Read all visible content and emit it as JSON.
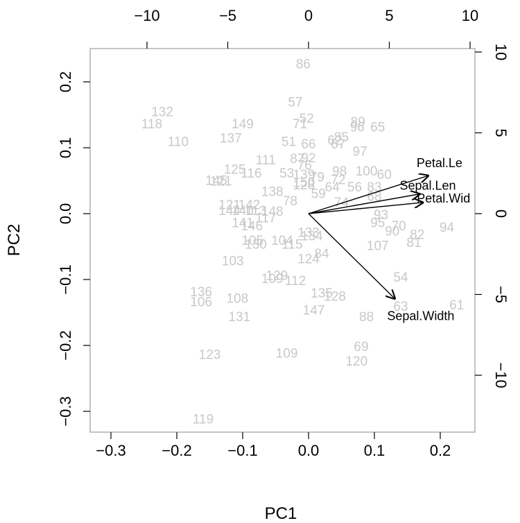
{
  "chart_data": {
    "type": "scatter",
    "title": "",
    "xlabel": "PC1",
    "ylabel": "PC2",
    "xlim": [
      -0.3,
      0.2
    ],
    "ylim": [
      -0.3,
      0.2
    ],
    "xticks": [
      "-0.3",
      "-0.2",
      "-0.1",
      "0.0",
      "0.1",
      "0.2"
    ],
    "yticks": [
      "-0.3",
      "-0.2",
      "-0.1",
      "0.0",
      "0.1",
      "0.2"
    ],
    "top_xticks": [
      "-10",
      "-5",
      "0",
      "5",
      "10"
    ],
    "right_yticks": [
      "-10",
      "-5",
      "0",
      "5",
      "10"
    ],
    "colors": {
      "points": "#c8c8c8",
      "arrows": "#000000",
      "frame": "#b0b0b0"
    },
    "points": [
      {
        "label": "86",
        "x": -0.008,
        "y": 0.226
      },
      {
        "label": "57",
        "x": -0.02,
        "y": 0.168
      },
      {
        "label": "52",
        "x": -0.003,
        "y": 0.143
      },
      {
        "label": "71",
        "x": -0.013,
        "y": 0.135
      },
      {
        "label": "132",
        "x": -0.222,
        "y": 0.153
      },
      {
        "label": "118",
        "x": -0.238,
        "y": 0.135
      },
      {
        "label": "149",
        "x": -0.1,
        "y": 0.135
      },
      {
        "label": "110",
        "x": -0.198,
        "y": 0.108
      },
      {
        "label": "137",
        "x": -0.118,
        "y": 0.113
      },
      {
        "label": "51",
        "x": -0.03,
        "y": 0.108
      },
      {
        "label": "66",
        "x": 0.0,
        "y": 0.104
      },
      {
        "label": "89",
        "x": 0.075,
        "y": 0.138
      },
      {
        "label": "96",
        "x": 0.074,
        "y": 0.13
      },
      {
        "label": "65",
        "x": 0.105,
        "y": 0.13
      },
      {
        "label": "85",
        "x": 0.05,
        "y": 0.115
      },
      {
        "label": "62",
        "x": 0.04,
        "y": 0.11
      },
      {
        "label": "67",
        "x": 0.045,
        "y": 0.104
      },
      {
        "label": "97",
        "x": 0.078,
        "y": 0.093
      },
      {
        "label": "111",
        "x": -0.065,
        "y": 0.08
      },
      {
        "label": "87",
        "x": -0.017,
        "y": 0.082
      },
      {
        "label": "92",
        "x": 0.0,
        "y": 0.083
      },
      {
        "label": "76",
        "x": -0.006,
        "y": 0.072
      },
      {
        "label": "125",
        "x": -0.112,
        "y": 0.066
      },
      {
        "label": "116",
        "x": -0.087,
        "y": 0.06
      },
      {
        "label": "145",
        "x": -0.14,
        "y": 0.049
      },
      {
        "label": "121",
        "x": -0.133,
        "y": 0.048
      },
      {
        "label": "53",
        "x": -0.033,
        "y": 0.06
      },
      {
        "label": "139",
        "x": -0.007,
        "y": 0.058
      },
      {
        "label": "79",
        "x": 0.013,
        "y": 0.054
      },
      {
        "label": "98",
        "x": 0.047,
        "y": 0.063
      },
      {
        "label": "100",
        "x": 0.088,
        "y": 0.063
      },
      {
        "label": "72",
        "x": 0.045,
        "y": 0.05
      },
      {
        "label": "60",
        "x": 0.115,
        "y": 0.058
      },
      {
        "label": "150",
        "x": -0.007,
        "y": 0.046
      },
      {
        "label": "128",
        "x": -0.007,
        "y": 0.042
      },
      {
        "label": "64",
        "x": 0.036,
        "y": 0.039
      },
      {
        "label": "56",
        "x": 0.07,
        "y": 0.039
      },
      {
        "label": "83",
        "x": 0.1,
        "y": 0.039
      },
      {
        "label": "68",
        "x": 0.1,
        "y": 0.025
      },
      {
        "label": "138",
        "x": -0.055,
        "y": 0.032
      },
      {
        "label": "59",
        "x": 0.015,
        "y": 0.029
      },
      {
        "label": "78",
        "x": -0.028,
        "y": 0.018
      },
      {
        "label": "74",
        "x": 0.05,
        "y": 0.016
      },
      {
        "label": "121",
        "x": -0.12,
        "y": 0.012
      },
      {
        "label": "142",
        "x": -0.09,
        "y": 0.012
      },
      {
        "label": "144",
        "x": -0.12,
        "y": 0.003
      },
      {
        "label": "140",
        "x": -0.1,
        "y": 0.003
      },
      {
        "label": "113",
        "x": -0.08,
        "y": 0.003
      },
      {
        "label": "148",
        "x": -0.055,
        "y": 0.002
      },
      {
        "label": "141",
        "x": -0.1,
        "y": -0.015
      },
      {
        "label": "117",
        "x": -0.065,
        "y": -0.008
      },
      {
        "label": "146",
        "x": -0.086,
        "y": -0.02
      },
      {
        "label": "93",
        "x": 0.11,
        "y": -0.003
      },
      {
        "label": "95",
        "x": 0.105,
        "y": -0.015
      },
      {
        "label": "70",
        "x": 0.137,
        "y": -0.02
      },
      {
        "label": "94",
        "x": 0.21,
        "y": -0.022
      },
      {
        "label": "82",
        "x": 0.165,
        "y": -0.033
      },
      {
        "label": "90",
        "x": 0.127,
        "y": -0.028
      },
      {
        "label": "105",
        "x": -0.085,
        "y": -0.042
      },
      {
        "label": "130",
        "x": -0.08,
        "y": -0.048
      },
      {
        "label": "104",
        "x": -0.04,
        "y": -0.042
      },
      {
        "label": "115",
        "x": -0.025,
        "y": -0.048
      },
      {
        "label": "133",
        "x": 0.0,
        "y": -0.03
      },
      {
        "label": "134",
        "x": 0.005,
        "y": -0.035
      },
      {
        "label": "107",
        "x": 0.105,
        "y": -0.05
      },
      {
        "label": "81",
        "x": 0.16,
        "y": -0.045
      },
      {
        "label": "124",
        "x": 0.0,
        "y": -0.07
      },
      {
        "label": "84",
        "x": 0.02,
        "y": -0.062
      },
      {
        "label": "103",
        "x": -0.115,
        "y": -0.073
      },
      {
        "label": "109",
        "x": -0.055,
        "y": -0.1
      },
      {
        "label": "129",
        "x": -0.048,
        "y": -0.095
      },
      {
        "label": "112",
        "x": -0.02,
        "y": -0.103
      },
      {
        "label": "54",
        "x": 0.14,
        "y": -0.098
      },
      {
        "label": "136",
        "x": -0.163,
        "y": -0.12
      },
      {
        "label": "106",
        "x": -0.163,
        "y": -0.135
      },
      {
        "label": "108",
        "x": -0.108,
        "y": -0.13
      },
      {
        "label": "135",
        "x": 0.02,
        "y": -0.122
      },
      {
        "label": "128",
        "x": 0.04,
        "y": -0.127
      },
      {
        "label": "63",
        "x": 0.14,
        "y": -0.142
      },
      {
        "label": "61",
        "x": 0.225,
        "y": -0.14
      },
      {
        "label": "147",
        "x": 0.008,
        "y": -0.148
      },
      {
        "label": "131",
        "x": -0.105,
        "y": -0.158
      },
      {
        "label": "88",
        "x": 0.088,
        "y": -0.158
      },
      {
        "label": "69",
        "x": 0.08,
        "y": -0.203
      },
      {
        "label": "123",
        "x": -0.15,
        "y": -0.215
      },
      {
        "label": "109",
        "x": -0.033,
        "y": -0.213
      },
      {
        "label": "120",
        "x": 0.073,
        "y": -0.225
      },
      {
        "label": "119",
        "x": -0.16,
        "y": -0.313
      }
    ],
    "loadings": [
      {
        "name": "Petal.Le",
        "x": 0.183,
        "y": 0.058
      },
      {
        "name": "Sepal.Len",
        "x": 0.17,
        "y": 0.03
      },
      {
        "name": "Petal.Wid",
        "x": 0.175,
        "y": 0.017
      },
      {
        "name": "Sepal.Width",
        "x": 0.132,
        "y": -0.13
      }
    ]
  }
}
